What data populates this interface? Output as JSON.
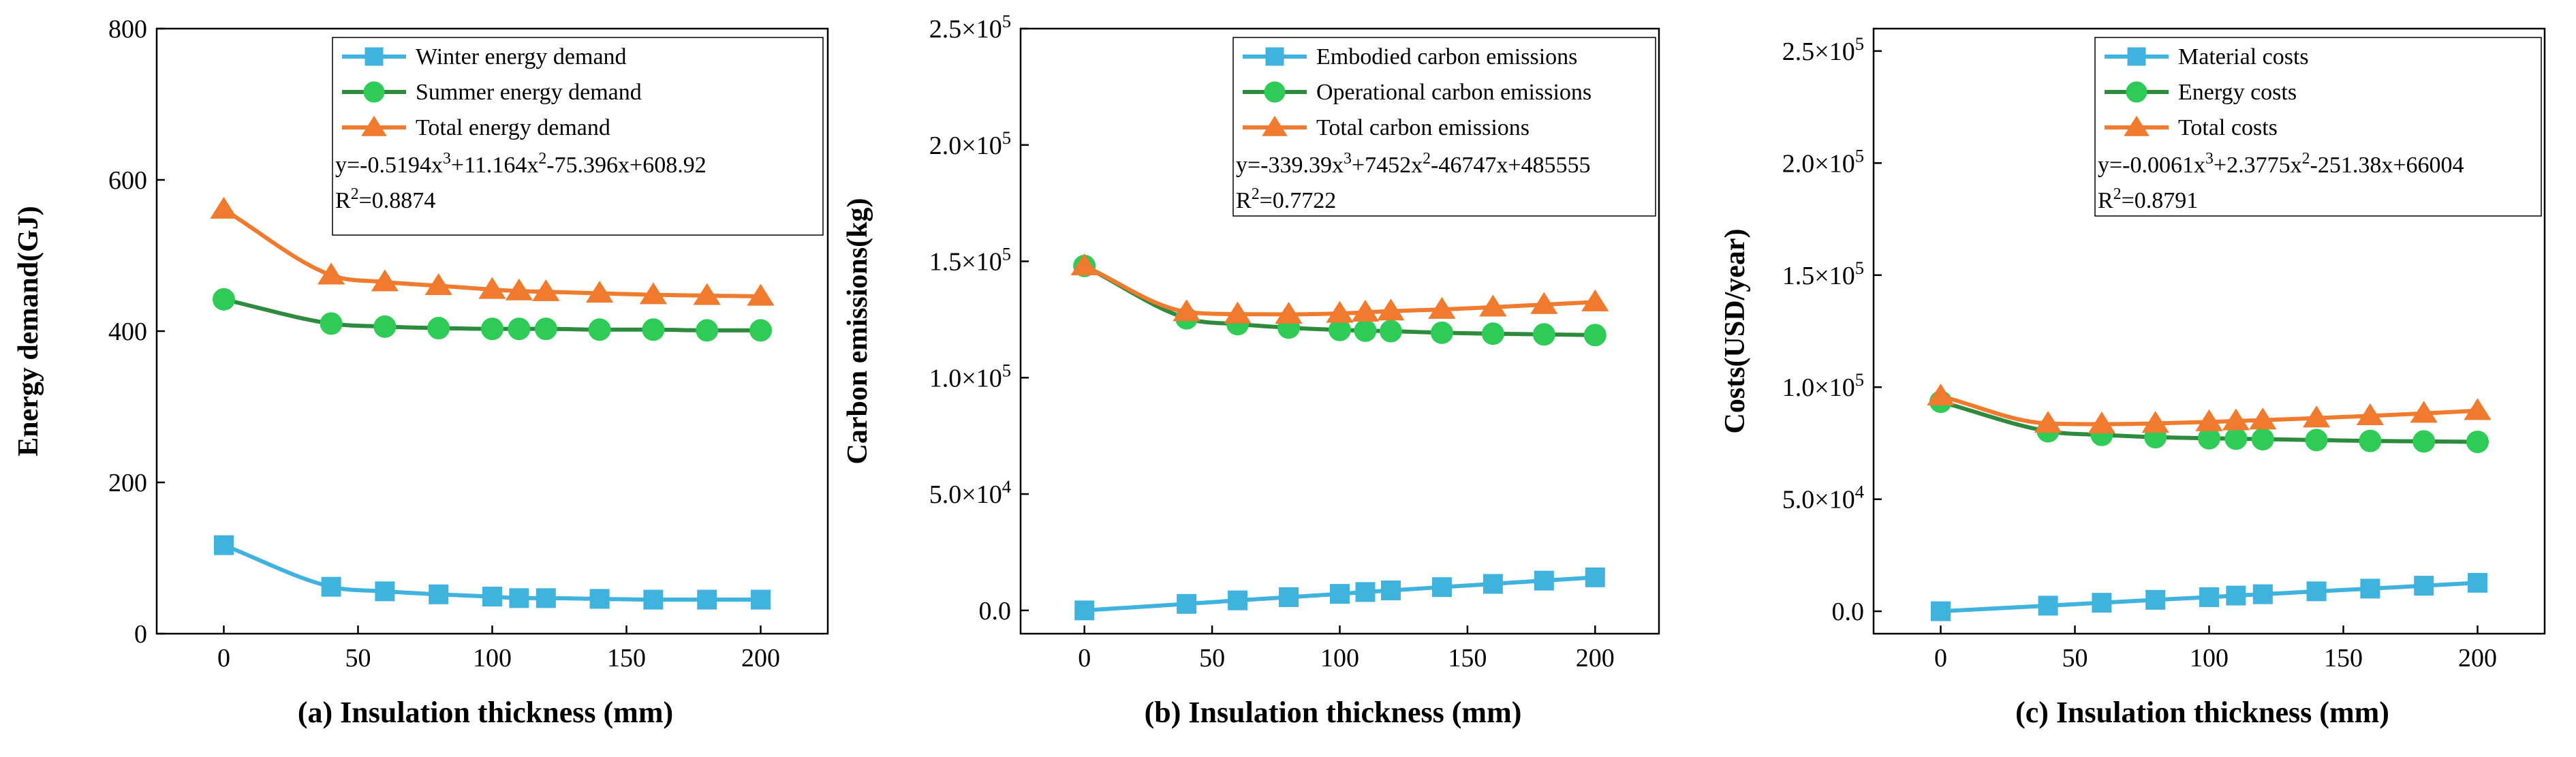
{
  "colors": {
    "winter": "#3fb3dd",
    "summer": "#2e8b3e",
    "summerMarker": "#2ecc57",
    "total": "#f07a2d"
  },
  "chart_data": [
    {
      "id": "a",
      "type": "line",
      "x": [
        0,
        40,
        60,
        80,
        100,
        110,
        120,
        140,
        160,
        180,
        200
      ],
      "series": [
        {
          "name": "Winter energy demand",
          "marker": "square",
          "color": "winter",
          "values": [
            117,
            62,
            56,
            52,
            49,
            47,
            47,
            46,
            45,
            45,
            45
          ]
        },
        {
          "name": "Summer energy demand",
          "marker": "circle",
          "color": "summer",
          "values": [
            442,
            410,
            406,
            404,
            403,
            403,
            403,
            402,
            402,
            401,
            401
          ]
        },
        {
          "name": "Total energy demand",
          "marker": "triangle",
          "color": "total",
          "values": [
            561,
            474,
            465,
            460,
            455,
            453,
            452,
            450,
            448,
            447,
            446
          ]
        }
      ],
      "xlim": [
        -25,
        225
      ],
      "ylim": [
        0,
        800
      ],
      "xticks": [
        0,
        50,
        100,
        150,
        200
      ],
      "yticks": [
        0,
        200,
        400,
        600,
        800
      ],
      "ytick_labels": [
        "0",
        "200",
        "400",
        "600",
        "800"
      ],
      "xlabel_prefix": "(a)",
      "xlabel": "Insulation thickness (mm)",
      "ylabel": "Energy demand(GJ)",
      "equation": "y=-0.5194x³+11.164x²-75.396x+608.92",
      "r2": "R²=0.8874"
    },
    {
      "id": "b",
      "type": "line",
      "x": [
        0,
        40,
        60,
        80,
        100,
        110,
        120,
        140,
        160,
        180,
        200
      ],
      "series": [
        {
          "name": "Embodied carbon emissions",
          "marker": "square",
          "color": "winter",
          "values": [
            0,
            2800,
            4300,
            5700,
            7100,
            7900,
            8600,
            10000,
            11400,
            12800,
            14200
          ]
        },
        {
          "name": "Operational carbon emissions",
          "marker": "circle",
          "color": "summer",
          "values": [
            148000,
            125500,
            123000,
            121500,
            120500,
            120200,
            120000,
            119300,
            118900,
            118600,
            118300
          ]
        },
        {
          "name": "Total carbon emissions",
          "marker": "triangle",
          "color": "total",
          "values": [
            148000,
            128300,
            127300,
            127200,
            127600,
            128100,
            128600,
            129300,
            130300,
            131400,
            132500
          ]
        }
      ],
      "xlim": [
        -25,
        225
      ],
      "ylim": [
        -10000,
        250000
      ],
      "xticks": [
        0,
        50,
        100,
        150,
        200
      ],
      "yticks": [
        0,
        50000,
        100000,
        150000,
        200000,
        250000
      ],
      "ytick_labels": [
        "0.0",
        "5.0×10⁴",
        "1.0×10⁵",
        "1.5×10⁵",
        "2.0×10⁵",
        "2.5×10⁵"
      ],
      "xlabel_prefix": "(b)",
      "xlabel": "Insulation thickness (mm)",
      "ylabel": "Carbon emissions(kg)",
      "equation": "y=-339.39x³+7452x²-46747x+485555",
      "r2": "R²=0.7722"
    },
    {
      "id": "c",
      "type": "line",
      "x": [
        0,
        40,
        60,
        80,
        100,
        110,
        120,
        140,
        160,
        180,
        200
      ],
      "series": [
        {
          "name": "Material costs",
          "marker": "square",
          "color": "winter",
          "values": [
            0,
            2500,
            3800,
            5100,
            6300,
            7000,
            7600,
            8900,
            10100,
            11400,
            12700
          ]
        },
        {
          "name": "Energy costs",
          "marker": "circle",
          "color": "summer",
          "values": [
            93500,
            80300,
            78700,
            77700,
            77200,
            77000,
            76800,
            76400,
            76000,
            75800,
            75600
          ]
        },
        {
          "name": "Total costs",
          "marker": "triangle",
          "color": "total",
          "values": [
            96000,
            83800,
            83500,
            83800,
            84500,
            84900,
            85300,
            86200,
            87200,
            88300,
            89500
          ]
        }
      ],
      "xlim": [
        -25,
        225
      ],
      "ylim": [
        -10000,
        260000
      ],
      "xticks": [
        0,
        50,
        100,
        150,
        200
      ],
      "yticks": [
        0,
        50000,
        100000,
        150000,
        200000,
        250000
      ],
      "ytick_labels": [
        "0.0",
        "5.0×10⁴",
        "1.0×10⁵",
        "1.5×10⁵",
        "2.0×10⁵",
        "2.5×10⁵"
      ],
      "xlabel_prefix": "(c)",
      "xlabel": "Insulation thickness (mm)",
      "ylabel": "Costs(USD/year)",
      "equation": "y=-0.0061x³+2.3775x²-251.38x+66004",
      "r2": "R²=0.8791"
    }
  ]
}
